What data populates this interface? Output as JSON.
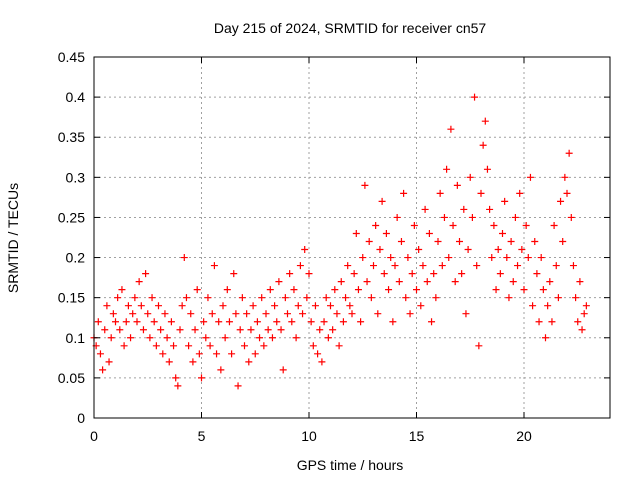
{
  "chart_data": {
    "type": "scatter",
    "title": "Day 215 of 2024, SRMTID for receiver cn57",
    "xlabel": "GPS time / hours",
    "ylabel": "SRMTID / TECUs",
    "xlim": [
      0,
      24
    ],
    "ylim": [
      0,
      0.45
    ],
    "grid": true,
    "x_ticks": [
      {
        "value": 0,
        "label": "0"
      },
      {
        "value": 5,
        "label": "5"
      },
      {
        "value": 10,
        "label": "10"
      },
      {
        "value": 15,
        "label": "15"
      },
      {
        "value": 20,
        "label": "20"
      }
    ],
    "y_ticks": [
      {
        "value": 0,
        "label": "0"
      },
      {
        "value": 0.05,
        "label": "0.05"
      },
      {
        "value": 0.1,
        "label": "0.1"
      },
      {
        "value": 0.15,
        "label": "0.15"
      },
      {
        "value": 0.2,
        "label": "0.2"
      },
      {
        "value": 0.25,
        "label": "0.25"
      },
      {
        "value": 0.3,
        "label": "0.3"
      },
      {
        "value": 0.35,
        "label": "0.35"
      },
      {
        "value": 0.4,
        "label": "0.4"
      },
      {
        "value": 0.45,
        "label": "0.45"
      }
    ],
    "series": [
      {
        "name": "cn57",
        "marker": "plus",
        "color": "#ff0000",
        "points": [
          [
            0.0,
            0.1
          ],
          [
            0.1,
            0.09
          ],
          [
            0.2,
            0.12
          ],
          [
            0.3,
            0.08
          ],
          [
            0.4,
            0.06
          ],
          [
            0.5,
            0.11
          ],
          [
            0.6,
            0.14
          ],
          [
            0.7,
            0.07
          ],
          [
            0.8,
            0.1
          ],
          [
            0.9,
            0.13
          ],
          [
            1.0,
            0.12
          ],
          [
            1.1,
            0.15
          ],
          [
            1.2,
            0.11
          ],
          [
            1.3,
            0.16
          ],
          [
            1.4,
            0.09
          ],
          [
            1.5,
            0.12
          ],
          [
            1.6,
            0.14
          ],
          [
            1.7,
            0.1
          ],
          [
            1.8,
            0.13
          ],
          [
            1.9,
            0.15
          ],
          [
            2.0,
            0.12
          ],
          [
            2.1,
            0.17
          ],
          [
            2.2,
            0.14
          ],
          [
            2.3,
            0.11
          ],
          [
            2.4,
            0.18
          ],
          [
            2.5,
            0.13
          ],
          [
            2.6,
            0.1
          ],
          [
            2.7,
            0.15
          ],
          [
            2.8,
            0.12
          ],
          [
            2.9,
            0.09
          ],
          [
            3.0,
            0.14
          ],
          [
            3.1,
            0.11
          ],
          [
            3.2,
            0.08
          ],
          [
            3.3,
            0.13
          ],
          [
            3.4,
            0.1
          ],
          [
            3.5,
            0.07
          ],
          [
            3.6,
            0.12
          ],
          [
            3.7,
            0.09
          ],
          [
            3.8,
            0.05
          ],
          [
            3.9,
            0.04
          ],
          [
            4.0,
            0.11
          ],
          [
            4.1,
            0.14
          ],
          [
            4.2,
            0.2
          ],
          [
            4.3,
            0.15
          ],
          [
            4.4,
            0.09
          ],
          [
            4.5,
            0.13
          ],
          [
            4.6,
            0.07
          ],
          [
            4.7,
            0.11
          ],
          [
            4.8,
            0.16
          ],
          [
            4.9,
            0.08
          ],
          [
            5.0,
            0.05
          ],
          [
            5.1,
            0.12
          ],
          [
            5.2,
            0.1
          ],
          [
            5.3,
            0.15
          ],
          [
            5.4,
            0.09
          ],
          [
            5.5,
            0.13
          ],
          [
            5.6,
            0.19
          ],
          [
            5.7,
            0.08
          ],
          [
            5.8,
            0.12
          ],
          [
            5.9,
            0.06
          ],
          [
            6.0,
            0.14
          ],
          [
            6.1,
            0.1
          ],
          [
            6.2,
            0.16
          ],
          [
            6.3,
            0.12
          ],
          [
            6.4,
            0.08
          ],
          [
            6.5,
            0.18
          ],
          [
            6.6,
            0.13
          ],
          [
            6.7,
            0.04
          ],
          [
            6.8,
            0.11
          ],
          [
            6.9,
            0.15
          ],
          [
            7.0,
            0.09
          ],
          [
            7.1,
            0.13
          ],
          [
            7.2,
            0.07
          ],
          [
            7.3,
            0.11
          ],
          [
            7.4,
            0.14
          ],
          [
            7.5,
            0.08
          ],
          [
            7.6,
            0.12
          ],
          [
            7.7,
            0.1
          ],
          [
            7.8,
            0.15
          ],
          [
            7.9,
            0.09
          ],
          [
            8.0,
            0.13
          ],
          [
            8.1,
            0.11
          ],
          [
            8.2,
            0.16
          ],
          [
            8.3,
            0.1
          ],
          [
            8.4,
            0.14
          ],
          [
            8.5,
            0.12
          ],
          [
            8.6,
            0.17
          ],
          [
            8.7,
            0.11
          ],
          [
            8.8,
            0.06
          ],
          [
            8.9,
            0.15
          ],
          [
            9.0,
            0.13
          ],
          [
            9.1,
            0.18
          ],
          [
            9.2,
            0.12
          ],
          [
            9.3,
            0.16
          ],
          [
            9.4,
            0.1
          ],
          [
            9.5,
            0.14
          ],
          [
            9.6,
            0.19
          ],
          [
            9.7,
            0.13
          ],
          [
            9.8,
            0.21
          ],
          [
            9.9,
            0.15
          ],
          [
            10.0,
            0.18
          ],
          [
            10.1,
            0.12
          ],
          [
            10.2,
            0.09
          ],
          [
            10.3,
            0.14
          ],
          [
            10.4,
            0.08
          ],
          [
            10.5,
            0.11
          ],
          [
            10.6,
            0.07
          ],
          [
            10.7,
            0.12
          ],
          [
            10.8,
            0.15
          ],
          [
            10.9,
            0.1
          ],
          [
            11.0,
            0.14
          ],
          [
            11.1,
            0.11
          ],
          [
            11.2,
            0.16
          ],
          [
            11.3,
            0.13
          ],
          [
            11.4,
            0.09
          ],
          [
            11.5,
            0.17
          ],
          [
            11.6,
            0.12
          ],
          [
            11.7,
            0.15
          ],
          [
            11.8,
            0.19
          ],
          [
            11.9,
            0.14
          ],
          [
            12.0,
            0.13
          ],
          [
            12.1,
            0.18
          ],
          [
            12.2,
            0.23
          ],
          [
            12.3,
            0.16
          ],
          [
            12.4,
            0.12
          ],
          [
            12.5,
            0.2
          ],
          [
            12.6,
            0.29
          ],
          [
            12.7,
            0.17
          ],
          [
            12.8,
            0.22
          ],
          [
            12.9,
            0.15
          ],
          [
            13.0,
            0.19
          ],
          [
            13.1,
            0.24
          ],
          [
            13.2,
            0.13
          ],
          [
            13.3,
            0.21
          ],
          [
            13.4,
            0.27
          ],
          [
            13.5,
            0.18
          ],
          [
            13.6,
            0.23
          ],
          [
            13.7,
            0.16
          ],
          [
            13.8,
            0.2
          ],
          [
            13.9,
            0.12
          ],
          [
            14.0,
            0.19
          ],
          [
            14.1,
            0.25
          ],
          [
            14.2,
            0.17
          ],
          [
            14.3,
            0.22
          ],
          [
            14.4,
            0.28
          ],
          [
            14.5,
            0.15
          ],
          [
            14.6,
            0.2
          ],
          [
            14.7,
            0.13
          ],
          [
            14.8,
            0.18
          ],
          [
            14.9,
            0.24
          ],
          [
            15.0,
            0.16
          ],
          [
            15.1,
            0.21
          ],
          [
            15.2,
            0.14
          ],
          [
            15.3,
            0.19
          ],
          [
            15.4,
            0.26
          ],
          [
            15.5,
            0.17
          ],
          [
            15.6,
            0.23
          ],
          [
            15.7,
            0.12
          ],
          [
            15.8,
            0.18
          ],
          [
            15.9,
            0.15
          ],
          [
            16.0,
            0.22
          ],
          [
            16.1,
            0.28
          ],
          [
            16.2,
            0.19
          ],
          [
            16.3,
            0.25
          ],
          [
            16.4,
            0.31
          ],
          [
            16.5,
            0.2
          ],
          [
            16.6,
            0.36
          ],
          [
            16.7,
            0.24
          ],
          [
            16.8,
            0.17
          ],
          [
            16.9,
            0.29
          ],
          [
            17.0,
            0.22
          ],
          [
            17.1,
            0.18
          ],
          [
            17.2,
            0.26
          ],
          [
            17.3,
            0.13
          ],
          [
            17.4,
            0.21
          ],
          [
            17.5,
            0.3
          ],
          [
            17.6,
            0.25
          ],
          [
            17.7,
            0.4
          ],
          [
            17.8,
            0.19
          ],
          [
            17.9,
            0.09
          ],
          [
            18.0,
            0.28
          ],
          [
            18.1,
            0.34
          ],
          [
            18.2,
            0.37
          ],
          [
            18.3,
            0.31
          ],
          [
            18.4,
            0.26
          ],
          [
            18.5,
            0.2
          ],
          [
            18.6,
            0.24
          ],
          [
            18.7,
            0.16
          ],
          [
            18.8,
            0.21
          ],
          [
            18.9,
            0.18
          ],
          [
            19.0,
            0.23
          ],
          [
            19.1,
            0.27
          ],
          [
            19.2,
            0.2
          ],
          [
            19.3,
            0.15
          ],
          [
            19.4,
            0.22
          ],
          [
            19.5,
            0.17
          ],
          [
            19.6,
            0.25
          ],
          [
            19.7,
            0.19
          ],
          [
            19.8,
            0.28
          ],
          [
            19.9,
            0.21
          ],
          [
            20.0,
            0.16
          ],
          [
            20.1,
            0.24
          ],
          [
            20.2,
            0.2
          ],
          [
            20.3,
            0.3
          ],
          [
            20.4,
            0.14
          ],
          [
            20.5,
            0.22
          ],
          [
            20.6,
            0.18
          ],
          [
            20.7,
            0.12
          ],
          [
            20.8,
            0.2
          ],
          [
            20.9,
            0.16
          ],
          [
            21.0,
            0.1
          ],
          [
            21.1,
            0.14
          ],
          [
            21.2,
            0.17
          ],
          [
            21.3,
            0.12
          ],
          [
            21.4,
            0.24
          ],
          [
            21.5,
            0.19
          ],
          [
            21.6,
            0.15
          ],
          [
            21.7,
            0.27
          ],
          [
            21.8,
            0.22
          ],
          [
            21.9,
            0.3
          ],
          [
            22.0,
            0.28
          ],
          [
            22.1,
            0.33
          ],
          [
            22.2,
            0.25
          ],
          [
            22.3,
            0.19
          ],
          [
            22.4,
            0.15
          ],
          [
            22.5,
            0.12
          ],
          [
            22.6,
            0.17
          ],
          [
            22.7,
            0.11
          ],
          [
            22.8,
            0.13
          ],
          [
            22.9,
            0.14
          ]
        ]
      }
    ]
  }
}
